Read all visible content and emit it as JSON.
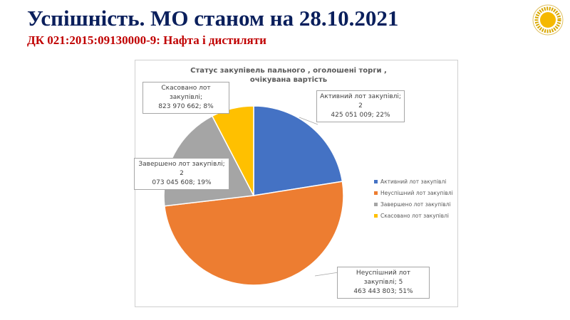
{
  "header": {
    "title": "Успішність.  МО станом на 28.10.2021",
    "subtitle": "ДК 021:2015:09130000-9: Нафта  і дистиляти"
  },
  "chart_data": {
    "type": "pie",
    "title": "Статус  закупівель пального , оголошені торги , очікувана вартість",
    "categories": [
      "Активний лот закупівлі",
      "Неуспішний лот закупівлі",
      "Завершено лот закупівлі",
      "Скасовано лот закупівлі"
    ],
    "values": [
      2425051009,
      5463443803,
      2073045608,
      823970662
    ],
    "percents": [
      22,
      51,
      19,
      8
    ],
    "colors": [
      "#4472c4",
      "#ed7d31",
      "#a5a5a5",
      "#ffc000"
    ],
    "legend": [
      "Активний  лот  закупівлі",
      "Неуспішний  лот  закупівлі",
      "Завершено  лот  закупівлі",
      "Скасовано  лот  закупівлі"
    ],
    "legend_position": "right",
    "data_labels": [
      {
        "line1": "Активний лот закупівлі; 2",
        "line2": "425 051 009; 22%"
      },
      {
        "line1": "Неуспішний лот закупівлі; 5",
        "line2": "463 443 803; 51%"
      },
      {
        "line1": "Завершено лот закупівлі; 2",
        "line2": "073 045 608; 19%"
      },
      {
        "line1": "Скасовано лот закупівлі;",
        "line2": "823 970 662; 8%"
      }
    ]
  }
}
